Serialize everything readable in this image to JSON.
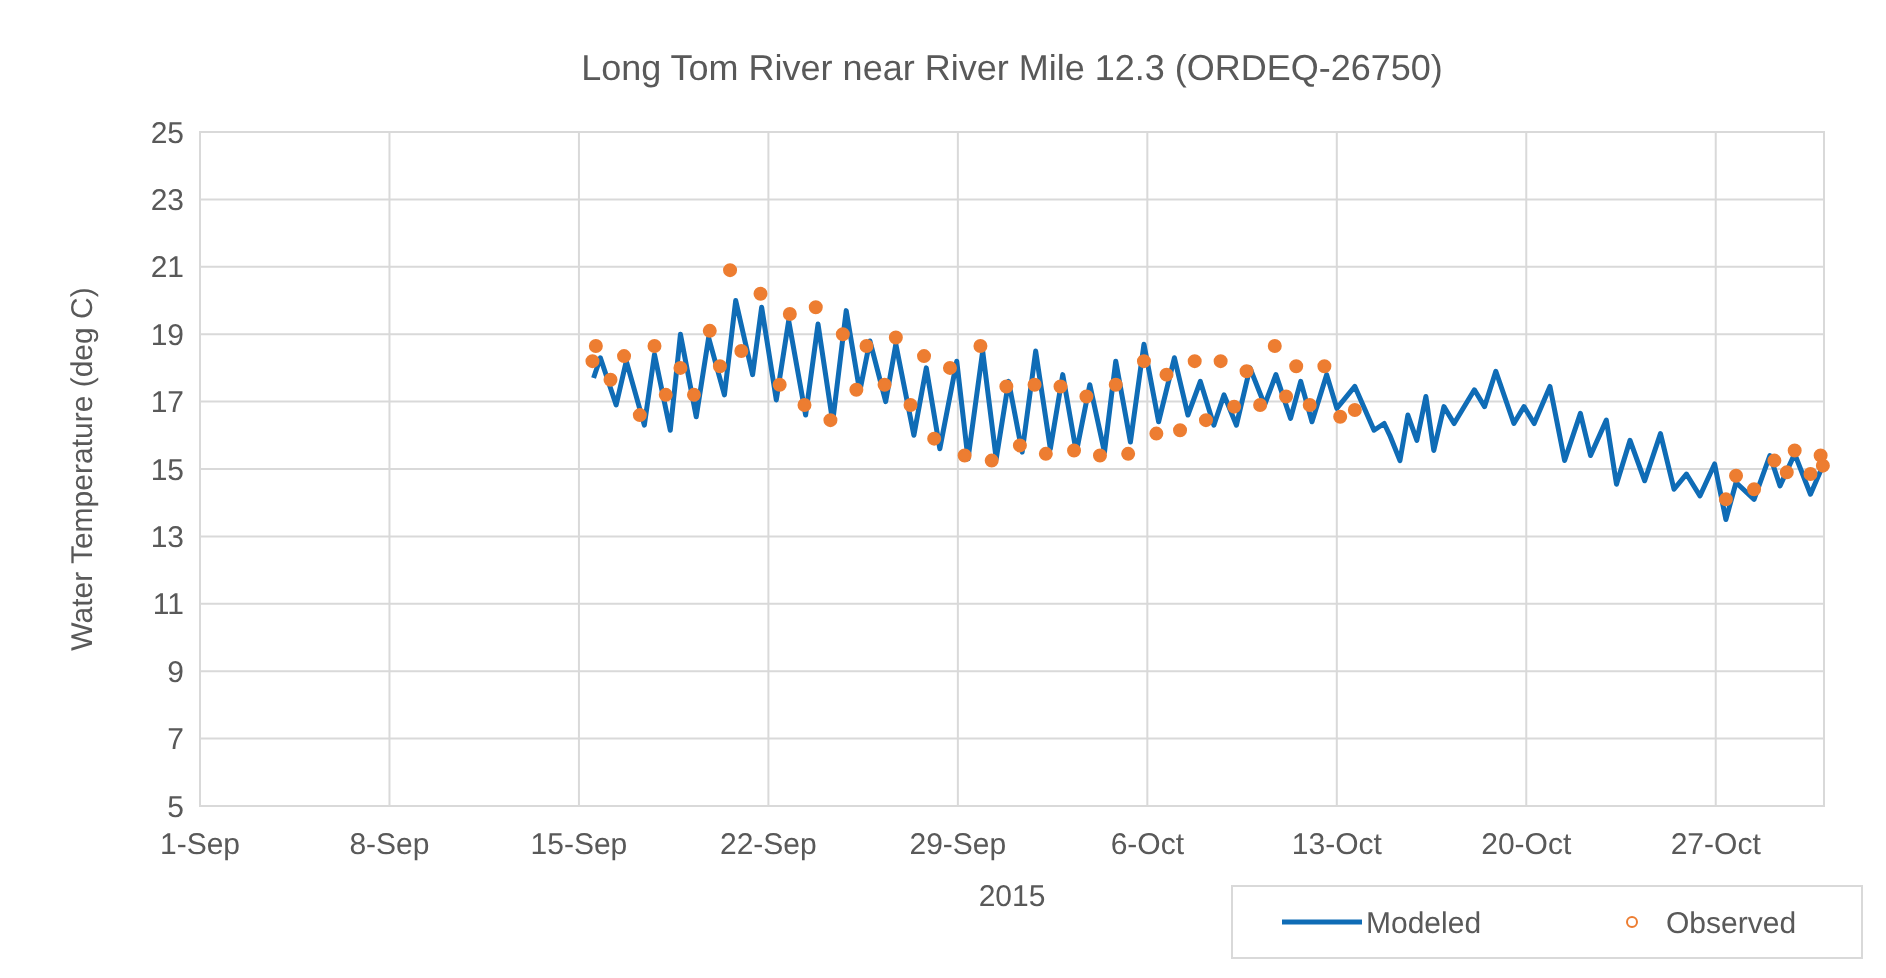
{
  "chart_data": {
    "type": "line",
    "title": "Long Tom River near River Mile 12.3 (ORDEQ-26750)",
    "xlabel": "2015",
    "ylabel": "Water Temperature (deg C)",
    "xlim": [
      "2015-09-01",
      "2015-10-31"
    ],
    "xticks": [
      {
        "value": "2015-09-01",
        "label": "1-Sep"
      },
      {
        "value": "2015-09-08",
        "label": "8-Sep"
      },
      {
        "value": "2015-09-15",
        "label": "15-Sep"
      },
      {
        "value": "2015-09-22",
        "label": "22-Sep"
      },
      {
        "value": "2015-09-29",
        "label": "29-Sep"
      },
      {
        "value": "2015-10-06",
        "label": "6-Oct"
      },
      {
        "value": "2015-10-13",
        "label": "13-Oct"
      },
      {
        "value": "2015-10-20",
        "label": "20-Oct"
      },
      {
        "value": "2015-10-27",
        "label": "27-Oct"
      }
    ],
    "ylim": [
      5,
      25
    ],
    "yticks": [
      5,
      7,
      9,
      11,
      13,
      15,
      17,
      19,
      21,
      23,
      25
    ],
    "grid": true,
    "legend": "bottom right",
    "line_style": "solid",
    "series": [
      {
        "name": "Modeled",
        "marker": "none",
        "color": "#0f6cb6",
        "x": [
          "2015-09-15T13:00",
          "2015-09-15T19:00",
          "2015-09-16T09:00",
          "2015-09-16T18:00",
          "2015-09-17T10:00",
          "2015-09-17T19:00",
          "2015-09-18T09:00",
          "2015-09-18T18:00",
          "2015-09-19T08:00",
          "2015-09-19T19:00",
          "2015-09-20T09:00",
          "2015-09-20T19:00",
          "2015-09-21T10:00",
          "2015-09-21T18:00",
          "2015-09-22T07:00",
          "2015-09-22T18:00",
          "2015-09-23T09:00",
          "2015-09-23T20:00",
          "2015-09-24T09:00",
          "2015-09-24T21:00",
          "2015-09-25T09:00",
          "2015-09-25T18:00",
          "2015-09-26T08:00",
          "2015-09-26T17:00",
          "2015-09-27T09:00",
          "2015-09-27T20:00",
          "2015-09-28T08:00",
          "2015-09-28T23:00",
          "2015-09-29T09:00",
          "2015-09-29T22:00",
          "2015-09-30T10:00",
          "2015-09-30T21:00",
          "2015-10-01T09:00",
          "2015-10-01T21:00",
          "2015-10-02T10:00",
          "2015-10-02T21:00",
          "2015-10-03T09:00",
          "2015-10-03T21:00",
          "2015-10-04T10:00",
          "2015-10-04T20:00",
          "2015-10-05T09:00",
          "2015-10-05T21:00",
          "2015-10-06T10:00",
          "2015-10-07T00:00",
          "2015-10-07T12:00",
          "2015-10-07T23:00",
          "2015-10-08T11:00",
          "2015-10-08T20:00",
          "2015-10-09T07:00",
          "2015-10-09T19:00",
          "2015-10-10T08:00",
          "2015-10-10T18:00",
          "2015-10-11T07:00",
          "2015-10-11T16:00",
          "2015-10-12T02:00",
          "2015-10-12T15:00",
          "2015-10-13T00:00",
          "2015-10-13T16:00",
          "2015-10-14T09:00",
          "2015-10-14T18:00",
          "2015-10-14T23:00",
          "2015-10-15T08:00",
          "2015-10-15T15:00",
          "2015-10-15T23:00",
          "2015-10-16T07:00",
          "2015-10-16T14:00",
          "2015-10-16T23:00",
          "2015-10-17T08:00",
          "2015-10-18T02:00",
          "2015-10-18T11:00",
          "2015-10-18T21:00",
          "2015-10-19T13:00",
          "2015-10-19T22:00",
          "2015-10-20T07:00",
          "2015-10-20T21:00",
          "2015-10-21T10:00",
          "2015-10-22T00:00",
          "2015-10-22T09:00",
          "2015-10-22T23:00",
          "2015-10-23T08:00",
          "2015-10-23T20:00",
          "2015-10-24T09:00",
          "2015-10-24T23:00",
          "2015-10-25T11:00",
          "2015-10-25T22:00",
          "2015-10-26T10:00",
          "2015-10-26T23:00",
          "2015-10-27T09:00",
          "2015-10-27T18:00",
          "2015-10-28T10:00",
          "2015-10-29T00:00",
          "2015-10-29T09:00",
          "2015-10-29T22:00",
          "2015-10-30T12:00",
          "2015-10-30T23:00"
        ],
        "values": [
          17.7,
          18.3,
          16.9,
          18.2,
          16.3,
          18.4,
          16.15,
          19.0,
          16.55,
          18.9,
          17.2,
          20.0,
          17.8,
          19.8,
          17.05,
          19.4,
          16.6,
          19.3,
          16.4,
          19.7,
          17.3,
          18.8,
          17.0,
          18.7,
          16.0,
          18.0,
          15.6,
          18.2,
          15.3,
          18.5,
          15.3,
          17.6,
          15.5,
          18.5,
          15.6,
          17.8,
          15.5,
          17.5,
          15.5,
          18.2,
          15.8,
          18.7,
          16.4,
          18.3,
          16.6,
          17.6,
          16.3,
          17.2,
          16.3,
          18.0,
          16.9,
          17.8,
          16.5,
          17.6,
          16.4,
          17.8,
          16.8,
          17.45,
          16.15,
          16.35,
          16.0,
          15.25,
          16.6,
          15.85,
          17.15,
          15.55,
          16.85,
          16.35,
          17.35,
          16.85,
          17.9,
          16.35,
          16.85,
          16.35,
          17.45,
          15.25,
          16.65,
          15.4,
          16.45,
          14.55,
          15.85,
          14.65,
          16.05,
          14.4,
          14.85,
          14.2,
          15.15,
          13.5,
          14.6,
          14.1,
          15.4,
          14.5,
          15.45,
          14.25,
          15.1
        ]
      },
      {
        "name": "Observed",
        "type": "scatter",
        "marker": "circle",
        "color": "#ed7d31",
        "x": [
          "2015-09-15T12:00",
          "2015-09-15T15:00",
          "2015-09-16T04:00",
          "2015-09-16T16:00",
          "2015-09-17T06:00",
          "2015-09-17T19:00",
          "2015-09-18T05:00",
          "2015-09-18T18:00",
          "2015-09-19T06:00",
          "2015-09-19T20:00",
          "2015-09-20T05:00",
          "2015-09-20T14:00",
          "2015-09-21T00:00",
          "2015-09-21T17:00",
          "2015-09-22T10:00",
          "2015-09-22T19:00",
          "2015-09-23T08:00",
          "2015-09-23T18:00",
          "2015-09-24T07:00",
          "2015-09-24T18:00",
          "2015-09-25T06:00",
          "2015-09-25T15:00",
          "2015-09-26T07:00",
          "2015-09-26T17:00",
          "2015-09-27T06:00",
          "2015-09-27T18:00",
          "2015-09-28T03:00",
          "2015-09-28T17:00",
          "2015-09-29T06:00",
          "2015-09-29T20:00",
          "2015-09-30T06:00",
          "2015-09-30T19:00",
          "2015-10-01T07:00",
          "2015-10-01T20:00",
          "2015-10-02T06:00",
          "2015-10-02T19:00",
          "2015-10-03T07:00",
          "2015-10-03T18:00",
          "2015-10-04T06:00",
          "2015-10-04T20:00",
          "2015-10-05T07:00",
          "2015-10-05T21:00",
          "2015-10-06T08:00",
          "2015-10-06T17:00",
          "2015-10-07T05:00",
          "2015-10-07T18:00",
          "2015-10-08T04:00",
          "2015-10-08T17:00",
          "2015-10-09T05:00",
          "2015-10-09T16:00",
          "2015-10-10T04:00",
          "2015-10-10T17:00",
          "2015-10-11T03:00",
          "2015-10-11T12:00",
          "2015-10-12T00:00",
          "2015-10-12T13:00",
          "2015-10-13T03:00",
          "2015-10-13T16:00",
          "2015-10-27T09:00",
          "2015-10-27T18:00",
          "2015-10-28T10:00",
          "2015-10-29T04:00",
          "2015-10-29T15:00",
          "2015-10-29T22:00",
          "2015-10-30T12:00",
          "2015-10-30T21:00",
          "2015-10-30T23:00"
        ],
        "values": [
          18.2,
          18.65,
          17.65,
          18.35,
          16.6,
          18.65,
          17.2,
          18.0,
          17.2,
          19.1,
          18.05,
          20.9,
          18.5,
          20.2,
          17.5,
          19.6,
          16.9,
          19.8,
          16.45,
          19.0,
          17.35,
          18.65,
          17.5,
          18.9,
          16.9,
          18.35,
          15.9,
          18.0,
          15.4,
          18.65,
          15.25,
          17.45,
          15.7,
          17.5,
          15.45,
          17.45,
          15.55,
          17.15,
          15.4,
          17.5,
          15.45,
          18.2,
          16.05,
          17.8,
          16.15,
          18.2,
          16.45,
          18.2,
          16.85,
          17.9,
          16.9,
          18.65,
          17.15,
          18.05,
          16.9,
          18.05,
          16.55,
          16.75,
          14.1,
          14.8,
          14.4,
          15.25,
          14.9,
          15.55,
          14.85,
          15.4,
          15.1
        ]
      }
    ]
  }
}
